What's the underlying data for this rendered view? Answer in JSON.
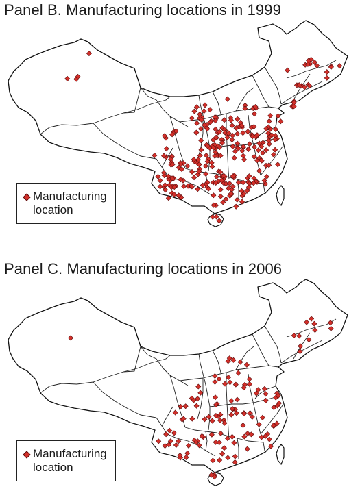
{
  "colors": {
    "marker": "#d3302a",
    "marker_outline": "#5a0d0d",
    "boundary": "#111111",
    "land": "#ffffff"
  },
  "legend": {
    "icon": "red-diamond-marker",
    "label": "Manufacturing location"
  },
  "panels": [
    {
      "title": "Panel B. Manufacturing locations in 1999",
      "year": "1999",
      "legend_label": "Manufacturing location"
    },
    {
      "title": "Panel C. Manufacturing locations in 2006",
      "year": "2006",
      "legend_label": "Manufacturing location"
    }
  ]
}
